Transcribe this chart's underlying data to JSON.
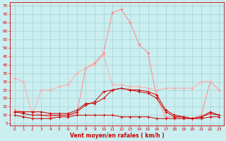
{
  "x": [
    0,
    1,
    2,
    3,
    4,
    5,
    6,
    7,
    8,
    9,
    10,
    11,
    12,
    13,
    14,
    15,
    16,
    17,
    18,
    19,
    20,
    21,
    22,
    23
  ],
  "series": {
    "rafales_max": [
      13,
      12,
      12,
      10,
      9,
      10,
      10,
      11,
      38,
      41,
      47,
      71,
      73,
      65,
      52,
      47,
      20,
      9,
      9,
      8,
      8,
      10,
      30,
      25
    ],
    "rafales_moy": [
      32,
      30,
      10,
      25,
      25,
      27,
      28,
      35,
      38,
      40,
      46,
      28,
      28,
      27,
      27,
      26,
      25,
      26,
      26,
      26,
      26,
      30,
      30,
      25
    ],
    "vent_moy": [
      12,
      11,
      10,
      10,
      10,
      10,
      10,
      12,
      16,
      18,
      24,
      25,
      26,
      25,
      24,
      23,
      20,
      12,
      9,
      9,
      8,
      9,
      11,
      10
    ],
    "vent_max": [
      12,
      12,
      12,
      12,
      11,
      11,
      11,
      13,
      17,
      17,
      20,
      25,
      26,
      25,
      25,
      24,
      22,
      13,
      10,
      9,
      8,
      9,
      12,
      10
    ],
    "vent_min": [
      10,
      9,
      8,
      8,
      8,
      9,
      9,
      10,
      10,
      10,
      10,
      10,
      9,
      9,
      9,
      9,
      8,
      8,
      8,
      8,
      8,
      8,
      9,
      9
    ]
  },
  "colors": {
    "rafales_max": "#ff8888",
    "rafales_moy": "#ffaaaa",
    "vent_max": "#cc0000",
    "vent_moy": "#cc0000",
    "vent_min": "#cc0000"
  },
  "background_color": "#cbeef0",
  "grid_color": "#99cccc",
  "axis_color": "#cc0000",
  "xlabel": "Vent moyen/en rafales ( km/h )",
  "yticks": [
    5,
    10,
    15,
    20,
    25,
    30,
    35,
    40,
    45,
    50,
    55,
    60,
    65,
    70,
    75
  ],
  "ylim": [
    4,
    77
  ],
  "xlim": [
    -0.5,
    23.5
  ]
}
